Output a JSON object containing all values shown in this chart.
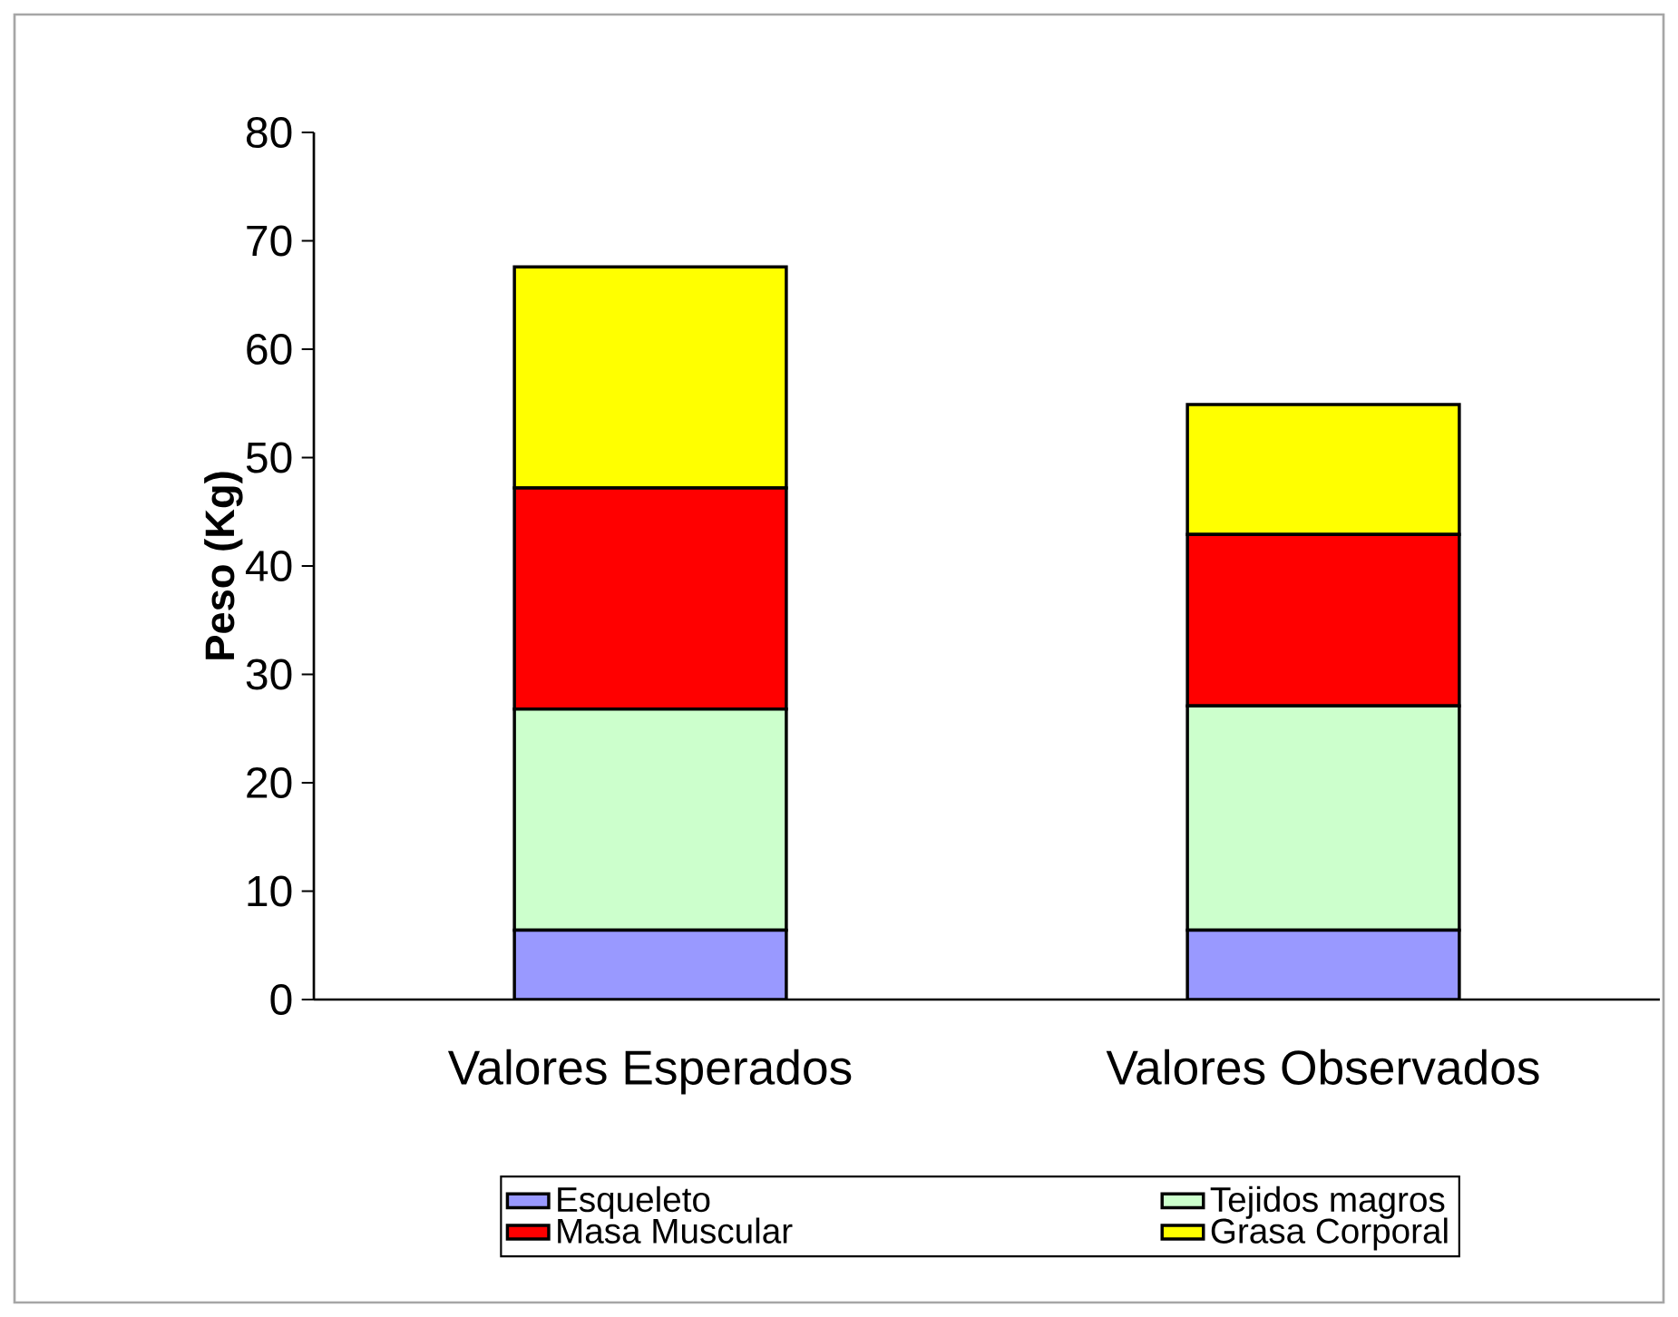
{
  "chart_data": {
    "type": "bar",
    "stacked": true,
    "ylabel": "Peso (Kg)",
    "categories": [
      "Valores Esperados",
      "Valores Observados"
    ],
    "series": [
      {
        "name": "Esqueleto",
        "color": "#9999ff",
        "values": [
          6.4,
          6.4
        ]
      },
      {
        "name": "Tejidos magros",
        "color": "#ccffcc",
        "values": [
          20.4,
          20.7
        ]
      },
      {
        "name": "Masa Muscular",
        "color": "#ff0000",
        "values": [
          20.4,
          15.8
        ]
      },
      {
        "name": "Grasa Corporal",
        "color": "#ffff00",
        "values": [
          20.4,
          12.0
        ]
      }
    ],
    "ylim": [
      0,
      80
    ],
    "yticks": [
      0,
      10,
      20,
      30,
      40,
      50,
      60,
      70,
      80
    ],
    "grid": false,
    "legend": "bottom"
  }
}
